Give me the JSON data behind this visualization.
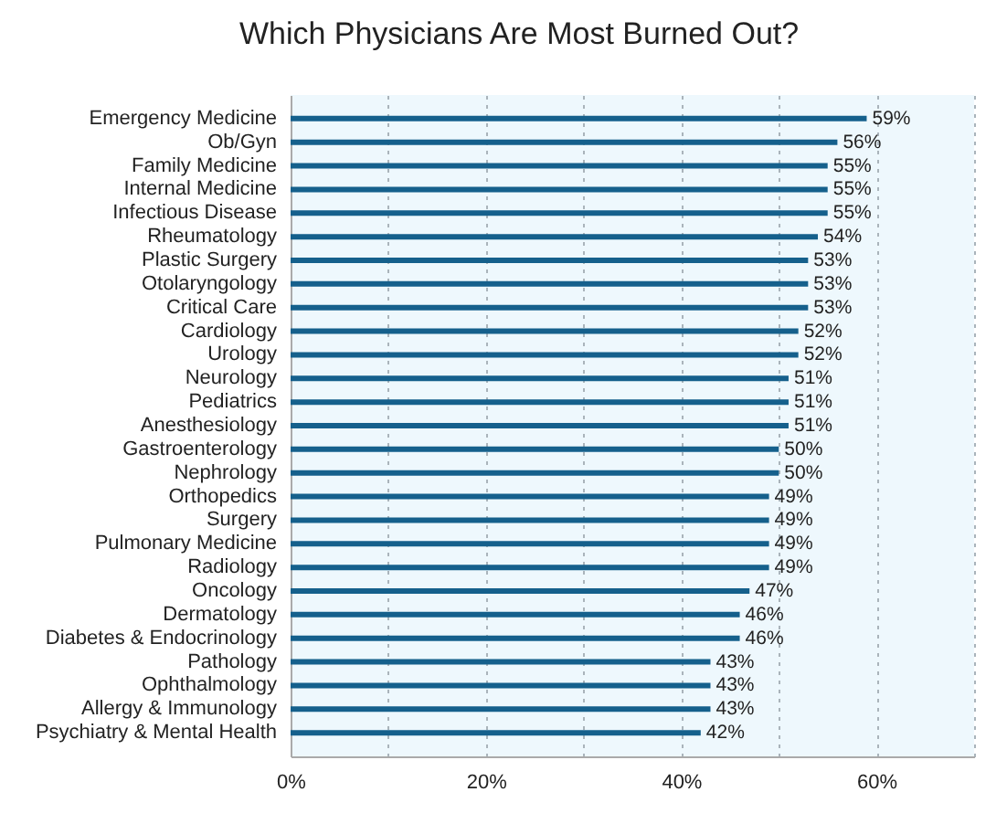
{
  "chart_data": {
    "type": "bar",
    "orientation": "horizontal",
    "title": "Which Physicians Are Most Burned Out?",
    "categories": [
      "Emergency Medicine",
      "Ob/Gyn",
      "Family Medicine",
      "Internal Medicine",
      "Infectious Disease",
      "Rheumatology",
      "Plastic Surgery",
      "Otolaryngology",
      "Critical Care",
      "Cardiology",
      "Urology",
      "Neurology",
      "Pediatrics",
      "Anesthesiology",
      "Gastroenterology",
      "Nephrology",
      "Orthopedics",
      "Surgery",
      "Pulmonary Medicine",
      "Radiology",
      "Oncology",
      "Dermatology",
      "Diabetes & Endocrinology",
      "Pathology",
      "Ophthalmology",
      "Allergy & Immunology",
      "Psychiatry & Mental Health"
    ],
    "values": [
      59,
      56,
      55,
      55,
      55,
      54,
      53,
      53,
      53,
      52,
      52,
      51,
      51,
      51,
      50,
      50,
      49,
      49,
      49,
      49,
      47,
      46,
      46,
      43,
      43,
      43,
      42
    ],
    "value_labels": [
      "59%",
      "56%",
      "55%",
      "55%",
      "55%",
      "54%",
      "53%",
      "53%",
      "53%",
      "52%",
      "52%",
      "51%",
      "51%",
      "51%",
      "50%",
      "50%",
      "49%",
      "49%",
      "49%",
      "49%",
      "47%",
      "46%",
      "46%",
      "43%",
      "43%",
      "43%",
      "42%"
    ],
    "color": "#15608c",
    "xlim": [
      0,
      70
    ],
    "xticks": [
      {
        "value": 0,
        "label": "0%"
      },
      {
        "value": 10,
        "label": null
      },
      {
        "value": 20,
        "label": "20%"
      },
      {
        "value": 30,
        "label": null
      },
      {
        "value": 40,
        "label": "40%"
      },
      {
        "value": 50,
        "label": null
      },
      {
        "value": 60,
        "label": "60%"
      },
      {
        "value": 70,
        "label": null
      }
    ],
    "grid": "x"
  }
}
